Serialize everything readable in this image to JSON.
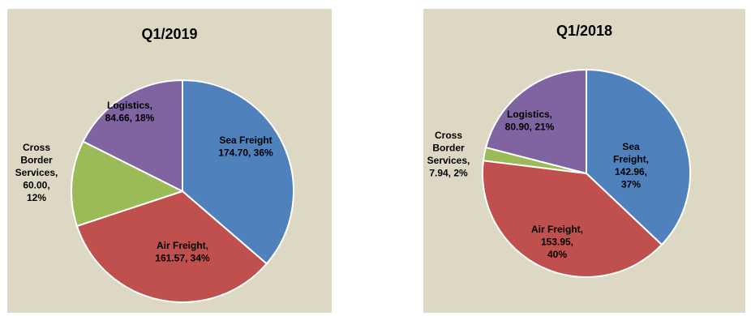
{
  "chart_data": [
    {
      "type": "pie",
      "title": "Q1/2019",
      "slices": [
        {
          "name": "Sea Freight",
          "value": 174.7,
          "value_label": "174.70",
          "percent": "36%",
          "color": "#4f81bd"
        },
        {
          "name": "Air Freight",
          "value": 161.57,
          "value_label": "161.57",
          "percent": "34%",
          "color": "#c0504d"
        },
        {
          "name": "Cross Border Services",
          "value": 60.0,
          "value_label": "60.00",
          "percent": "12%",
          "color": "#9bbb59"
        },
        {
          "name": "Logistics",
          "value": 84.66,
          "value_label": "84.66",
          "percent": "18%",
          "color": "#8064a2"
        }
      ],
      "legend": "none"
    },
    {
      "type": "pie",
      "title": "Q1/2018",
      "slices": [
        {
          "name": "Sea Freight",
          "value": 142.96,
          "value_label": "142.96",
          "percent": "37%",
          "color": "#4f81bd"
        },
        {
          "name": "Air Freight",
          "value": 153.95,
          "value_label": "153.95",
          "percent": "40%",
          "color": "#c0504d"
        },
        {
          "name": "Cross Border Services",
          "value": 7.94,
          "value_label": "7.94",
          "percent": "2%",
          "color": "#9bbb59"
        },
        {
          "name": "Logistics",
          "value": 80.9,
          "value_label": "80.90",
          "percent": "21%",
          "color": "#8064a2"
        }
      ],
      "legend": "none"
    }
  ]
}
